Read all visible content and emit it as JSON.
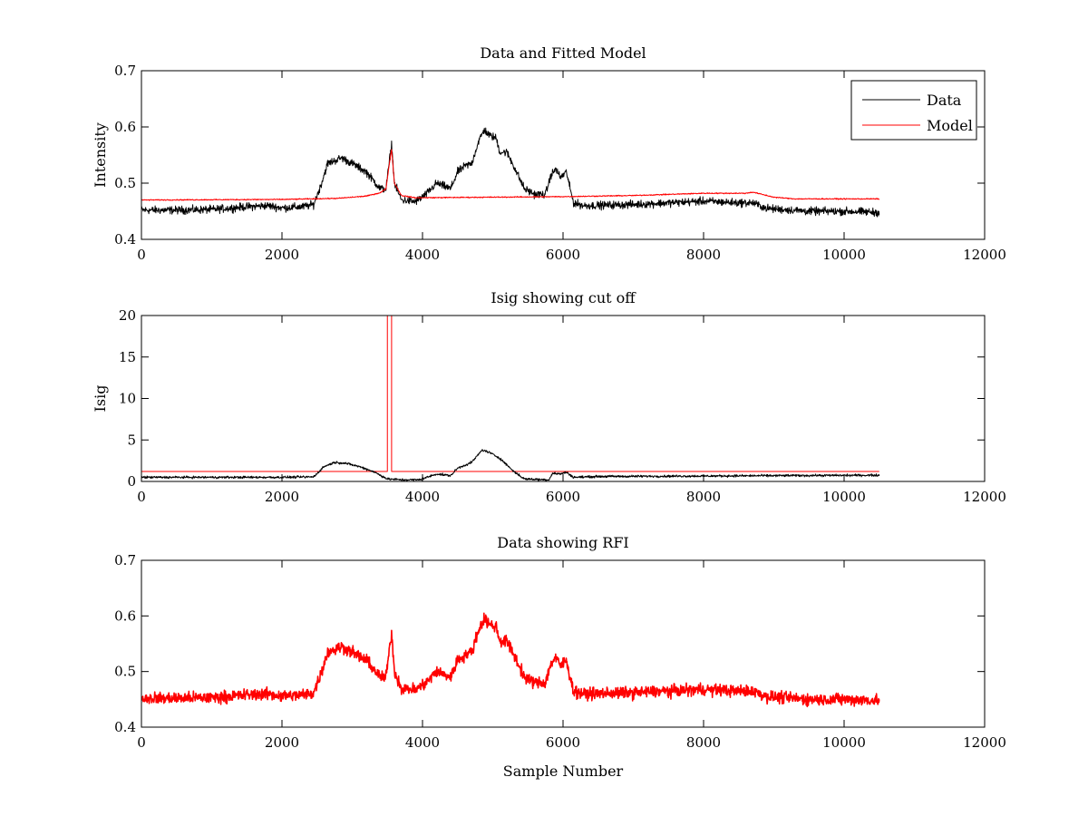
{
  "chart_data": [
    {
      "type": "line",
      "title": "Data and Fitted Model",
      "xlabel": "",
      "ylabel": "Intensity",
      "xlim": [
        0,
        12000
      ],
      "ylim": [
        0.4,
        0.7
      ],
      "xticks": [
        0,
        2000,
        4000,
        6000,
        8000,
        10000,
        12000
      ],
      "xtick_labels": [
        "0",
        "2000",
        "4000",
        "6000",
        "8000",
        "10000",
        "12000"
      ],
      "yticks": [
        0.4,
        0.5,
        0.6,
        0.7
      ],
      "ytick_labels": [
        "0.4",
        "0.5",
        "0.6",
        "0.7"
      ],
      "grid": false,
      "legend": "top-right",
      "series": [
        {
          "name": "Data",
          "color": "#000000",
          "noise": 0.006,
          "points": [
            [
              0,
              0.452
            ],
            [
              500,
              0.452
            ],
            [
              1000,
              0.453
            ],
            [
              1500,
              0.458
            ],
            [
              1800,
              0.46
            ],
            [
              2000,
              0.456
            ],
            [
              2300,
              0.458
            ],
            [
              2450,
              0.462
            ],
            [
              2550,
              0.495
            ],
            [
              2650,
              0.535
            ],
            [
              2850,
              0.545
            ],
            [
              3000,
              0.535
            ],
            [
              3200,
              0.52
            ],
            [
              3400,
              0.49
            ],
            [
              3480,
              0.49
            ],
            [
              3520,
              0.53
            ],
            [
              3560,
              0.57
            ],
            [
              3600,
              0.5
            ],
            [
              3700,
              0.47
            ],
            [
              3900,
              0.467
            ],
            [
              4050,
              0.48
            ],
            [
              4200,
              0.5
            ],
            [
              4300,
              0.495
            ],
            [
              4400,
              0.49
            ],
            [
              4500,
              0.52
            ],
            [
              4600,
              0.53
            ],
            [
              4700,
              0.535
            ],
            [
              4800,
              0.575
            ],
            [
              4880,
              0.595
            ],
            [
              4950,
              0.585
            ],
            [
              5050,
              0.58
            ],
            [
              5100,
              0.555
            ],
            [
              5200,
              0.555
            ],
            [
              5300,
              0.53
            ],
            [
              5450,
              0.49
            ],
            [
              5600,
              0.48
            ],
            [
              5750,
              0.48
            ],
            [
              5830,
              0.515
            ],
            [
              5900,
              0.525
            ],
            [
              5960,
              0.51
            ],
            [
              6050,
              0.52
            ],
            [
              6100,
              0.49
            ],
            [
              6150,
              0.465
            ],
            [
              6300,
              0.46
            ],
            [
              7000,
              0.462
            ],
            [
              7500,
              0.465
            ],
            [
              8000,
              0.468
            ],
            [
              8500,
              0.465
            ],
            [
              8700,
              0.465
            ],
            [
              8900,
              0.455
            ],
            [
              9500,
              0.45
            ],
            [
              10000,
              0.45
            ],
            [
              10500,
              0.448
            ]
          ]
        },
        {
          "name": "Model",
          "color": "#ff0000",
          "noise": 0.0008,
          "points": [
            [
              0,
              0.47
            ],
            [
              2000,
              0.471
            ],
            [
              2800,
              0.473
            ],
            [
              3200,
              0.477
            ],
            [
              3400,
              0.483
            ],
            [
              3480,
              0.49
            ],
            [
              3540,
              0.545
            ],
            [
              3560,
              0.56
            ],
            [
              3600,
              0.5
            ],
            [
              3700,
              0.478
            ],
            [
              3900,
              0.474
            ],
            [
              6000,
              0.476
            ],
            [
              7000,
              0.478
            ],
            [
              8000,
              0.482
            ],
            [
              8600,
              0.482
            ],
            [
              8700,
              0.484
            ],
            [
              9000,
              0.475
            ],
            [
              9300,
              0.472
            ],
            [
              10500,
              0.472
            ]
          ]
        }
      ]
    },
    {
      "type": "line",
      "title": "Isig showing cut off",
      "xlabel": "",
      "ylabel": "Isig",
      "xlim": [
        0,
        12000
      ],
      "ylim": [
        0,
        20
      ],
      "xticks": [
        0,
        2000,
        4000,
        6000,
        8000,
        10000,
        12000
      ],
      "xtick_labels": [
        "0",
        "2000",
        "4000",
        "6000",
        "8000",
        "10000",
        "12000"
      ],
      "yticks": [
        0,
        5,
        10,
        15,
        20
      ],
      "ytick_labels": [
        "0",
        "5",
        "10",
        "15",
        "20"
      ],
      "grid": false,
      "legend": "none",
      "series": [
        {
          "color": "#ff0000",
          "noise": 0,
          "points": [
            [
              0,
              1.2
            ],
            [
              3500,
              1.2
            ],
            [
              3500,
              20
            ],
            [
              3560,
              20
            ],
            [
              3560,
              1.2
            ],
            [
              10500,
              1.2
            ]
          ]
        },
        {
          "color": "#000000",
          "noise": 0.12,
          "points": [
            [
              0,
              0.5
            ],
            [
              2000,
              0.5
            ],
            [
              2450,
              0.55
            ],
            [
              2600,
              1.8
            ],
            [
              2750,
              2.3
            ],
            [
              2900,
              2.2
            ],
            [
              3100,
              1.8
            ],
            [
              3300,
              1.2
            ],
            [
              3500,
              0.3
            ],
            [
              3700,
              0.2
            ],
            [
              3950,
              0.2
            ],
            [
              4100,
              0.6
            ],
            [
              4200,
              0.9
            ],
            [
              4400,
              0.7
            ],
            [
              4500,
              1.6
            ],
            [
              4700,
              2.3
            ],
            [
              4850,
              3.8
            ],
            [
              4950,
              3.5
            ],
            [
              5100,
              2.8
            ],
            [
              5300,
              1.2
            ],
            [
              5450,
              0.3
            ],
            [
              5800,
              0.2
            ],
            [
              5850,
              1.0
            ],
            [
              5950,
              0.9
            ],
            [
              6050,
              1.1
            ],
            [
              6150,
              0.5
            ],
            [
              6500,
              0.6
            ],
            [
              8000,
              0.65
            ],
            [
              9000,
              0.7
            ],
            [
              10500,
              0.75
            ]
          ]
        }
      ]
    },
    {
      "type": "line",
      "title": "Data showing RFI",
      "xlabel": "Sample Number",
      "ylabel": "",
      "xlim": [
        0,
        12000
      ],
      "ylim": [
        0.4,
        0.7
      ],
      "xticks": [
        0,
        2000,
        4000,
        6000,
        8000,
        10000,
        12000
      ],
      "xtick_labels": [
        "0",
        "2000",
        "4000",
        "6000",
        "8000",
        "10000",
        "12000"
      ],
      "yticks": [
        0.4,
        0.5,
        0.6,
        0.7
      ],
      "ytick_labels": [
        "0.4",
        "0.5",
        "0.6",
        "0.7"
      ],
      "grid": false,
      "legend": "none",
      "series": [
        {
          "color": "#ff0000",
          "noise": 0.009,
          "points": [
            [
              0,
              0.452
            ],
            [
              500,
              0.452
            ],
            [
              1000,
              0.453
            ],
            [
              1500,
              0.458
            ],
            [
              1800,
              0.46
            ],
            [
              2000,
              0.456
            ],
            [
              2300,
              0.458
            ],
            [
              2450,
              0.462
            ],
            [
              2550,
              0.495
            ],
            [
              2650,
              0.535
            ],
            [
              2850,
              0.545
            ],
            [
              3000,
              0.535
            ],
            [
              3200,
              0.52
            ],
            [
              3400,
              0.49
            ],
            [
              3480,
              0.49
            ],
            [
              3520,
              0.53
            ],
            [
              3560,
              0.57
            ],
            [
              3600,
              0.5
            ],
            [
              3700,
              0.47
            ],
            [
              3900,
              0.467
            ],
            [
              4050,
              0.48
            ],
            [
              4200,
              0.5
            ],
            [
              4300,
              0.495
            ],
            [
              4400,
              0.49
            ],
            [
              4500,
              0.52
            ],
            [
              4600,
              0.53
            ],
            [
              4700,
              0.535
            ],
            [
              4800,
              0.575
            ],
            [
              4880,
              0.595
            ],
            [
              4950,
              0.585
            ],
            [
              5050,
              0.58
            ],
            [
              5100,
              0.555
            ],
            [
              5200,
              0.555
            ],
            [
              5300,
              0.53
            ],
            [
              5450,
              0.49
            ],
            [
              5600,
              0.48
            ],
            [
              5750,
              0.48
            ],
            [
              5830,
              0.515
            ],
            [
              5900,
              0.525
            ],
            [
              5960,
              0.51
            ],
            [
              6050,
              0.52
            ],
            [
              6100,
              0.49
            ],
            [
              6150,
              0.465
            ],
            [
              6300,
              0.46
            ],
            [
              7000,
              0.462
            ],
            [
              7500,
              0.465
            ],
            [
              8000,
              0.468
            ],
            [
              8500,
              0.465
            ],
            [
              8700,
              0.465
            ],
            [
              8900,
              0.455
            ],
            [
              9500,
              0.45
            ],
            [
              10000,
              0.45
            ],
            [
              10500,
              0.448
            ]
          ]
        }
      ]
    }
  ]
}
